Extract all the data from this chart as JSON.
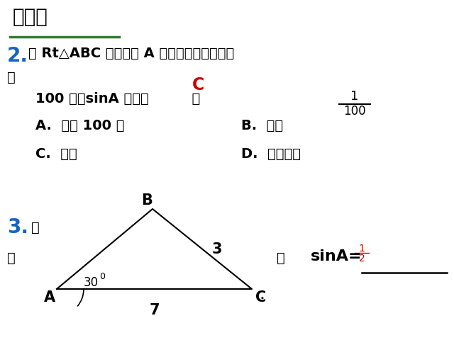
{
  "bg_color": "#ffffff",
  "title": "练一练",
  "title_underline_color": "#2e7d32",
  "q2_number": "2.",
  "q2_number_color": "#1565C0",
  "q2_text1": "在 Rt△ABC 中，锐角 A 的对边和斜边同时扩",
  "q2_text2": "大",
  "q2_C_label": "C",
  "q2_C_color": "#cc0000",
  "q2_text3": "100 倍，sinA 的值（         ）",
  "q2_frac_num": "1",
  "q2_frac_den": "100",
  "q2_A": "A.  扩大 100 倍",
  "q2_B": "B.  缩小",
  "q2_C_opt": "C.  不变",
  "q2_D": "D.  不能确定",
  "q3_number": "3.",
  "q3_number_color": "#1565C0",
  "q3_text1": "如",
  "q3_text2": "图",
  "q3_then": "则",
  "q3_sinA": "sinA=",
  "q3_answer_num": "1",
  "q3_answer_den": "2",
  "q3_answer_color": "#cc0000",
  "tri_label_A": "A",
  "tri_label_B": "B",
  "tri_label_C": "C",
  "tri_label_3": "3",
  "tri_angle_label": "30",
  "tri_label_7": "7",
  "tri_dot": "·",
  "text_color": "#000000",
  "font_size_title": 20,
  "font_size_body": 14,
  "font_size_q3body": 13
}
